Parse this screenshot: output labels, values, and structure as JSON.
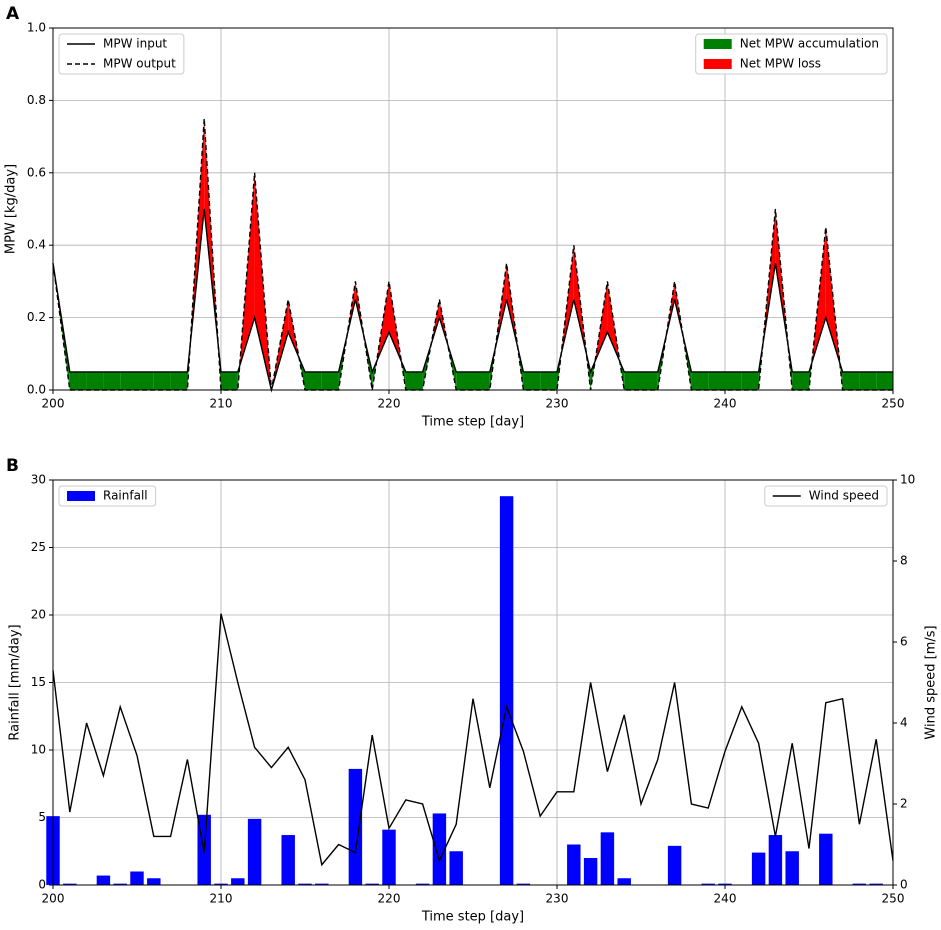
{
  "chart_data": [
    {
      "type": "line",
      "panel": "A",
      "xlabel": "Time step [day]",
      "ylabel": "MPW [kg/day]",
      "x": [
        200,
        201,
        202,
        203,
        204,
        205,
        206,
        207,
        208,
        209,
        210,
        211,
        212,
        213,
        214,
        215,
        216,
        217,
        218,
        219,
        220,
        221,
        222,
        223,
        224,
        225,
        226,
        227,
        228,
        229,
        230,
        231,
        232,
        233,
        234,
        235,
        236,
        237,
        238,
        239,
        240,
        241,
        242,
        243,
        244,
        245,
        246,
        247,
        248,
        249,
        250
      ],
      "series": [
        {
          "name": "MPW input",
          "color": "#000000",
          "dash": false,
          "legend": "upper left",
          "values": [
            0.35,
            0.05,
            0.05,
            0.05,
            0.05,
            0.05,
            0.05,
            0.05,
            0.05,
            0.5,
            0.05,
            0.05,
            0.2,
            0,
            0.16,
            0.05,
            0.05,
            0.05,
            0.25,
            0.05,
            0.16,
            0.05,
            0.05,
            0.2,
            0.05,
            0.05,
            0.05,
            0.25,
            0.05,
            0.05,
            0.05,
            0.25,
            0.05,
            0.16,
            0.05,
            0.05,
            0.05,
            0.25,
            0.05,
            0.05,
            0.05,
            0.05,
            0.05,
            0.35,
            0.05,
            0.05,
            0.2,
            0.05,
            0.05,
            0.05,
            0.05
          ]
        },
        {
          "name": "MPW output",
          "color": "#000000",
          "dash": true,
          "legend": "upper left",
          "values": [
            0.35,
            0,
            0,
            0,
            0,
            0,
            0,
            0,
            0,
            0.75,
            0,
            0,
            0.6,
            0,
            0.25,
            0,
            0,
            0,
            0.3,
            0,
            0.3,
            0,
            0,
            0.25,
            0,
            0,
            0,
            0.35,
            0,
            0,
            0,
            0.4,
            0,
            0.3,
            0,
            0,
            0,
            0.3,
            0,
            0,
            0,
            0,
            0,
            0.5,
            0,
            0,
            0.45,
            0,
            0,
            0,
            0
          ]
        }
      ],
      "fills": [
        {
          "name": "Net MPW accumulation",
          "color": "#008000",
          "legend": "upper right"
        },
        {
          "name": "Net MPW loss",
          "color": "#ff0000",
          "legend": "upper right"
        }
      ],
      "xlim": [
        200,
        250
      ],
      "xticks": [
        200,
        210,
        220,
        230,
        240,
        250
      ],
      "ylim": [
        0,
        1
      ],
      "yticks": [
        {
          "value": 0,
          "label": "0.0"
        },
        0.2,
        0.4,
        0.6,
        0.8,
        {
          "value": 1,
          "label": "1.0"
        }
      ],
      "grid": true
    },
    {
      "type": "bar",
      "panel": "B",
      "xlabel": "Time step [day]",
      "ylabel": "Rainfall [mm/day]",
      "y2label": "Wind speed [m/s]",
      "x": [
        200,
        201,
        202,
        203,
        204,
        205,
        206,
        207,
        208,
        209,
        210,
        211,
        212,
        213,
        214,
        215,
        216,
        217,
        218,
        219,
        220,
        221,
        222,
        223,
        224,
        225,
        226,
        227,
        228,
        229,
        230,
        231,
        232,
        233,
        234,
        235,
        236,
        237,
        238,
        239,
        240,
        241,
        242,
        243,
        244,
        245,
        246,
        247,
        248,
        249,
        250
      ],
      "series": [
        {
          "name": "Rainfall",
          "type": "bar",
          "color": "#0000ff",
          "legend": "upper left",
          "values": [
            5.1,
            0.1,
            0,
            0.7,
            0.1,
            1.0,
            0.5,
            0,
            0,
            5.2,
            0.1,
            0.5,
            4.9,
            0,
            3.7,
            0.1,
            0.1,
            0,
            8.6,
            0.1,
            4.1,
            0,
            0.1,
            5.3,
            2.5,
            0,
            0,
            28.8,
            0.1,
            0,
            0,
            3.0,
            2.0,
            3.9,
            0.5,
            0,
            0,
            2.9,
            0,
            0.1,
            0.1,
            0,
            2.4,
            3.7,
            2.5,
            0,
            3.8,
            0,
            0.1,
            0.1,
            0
          ]
        },
        {
          "name": "Wind speed",
          "type": "line",
          "axis": "y2",
          "color": "#000000",
          "legend": "upper right",
          "values": [
            5.3,
            1.8,
            4.0,
            2.7,
            4.4,
            3.2,
            1.2,
            1.2,
            3.1,
            0.8,
            6.7,
            5.0,
            3.4,
            2.9,
            3.4,
            2.6,
            0.5,
            1.0,
            0.8,
            3.7,
            1.4,
            2.1,
            2.0,
            0.6,
            1.5,
            4.6,
            2.4,
            4.4,
            3.3,
            1.7,
            2.3,
            2.3,
            5.0,
            2.8,
            4.2,
            2.0,
            3.1,
            5.0,
            2.0,
            1.9,
            3.3,
            4.4,
            3.5,
            1.2,
            3.5,
            0.9,
            4.5,
            4.6,
            1.5,
            3.6,
            0.6
          ]
        }
      ],
      "xlim": [
        200,
        250
      ],
      "xticks": [
        200,
        210,
        220,
        230,
        240,
        250
      ],
      "ylim": [
        0,
        30
      ],
      "yticks": [
        0,
        5,
        10,
        15,
        20,
        25,
        30
      ],
      "y2lim": [
        0,
        10
      ],
      "y2ticks": [
        0,
        2,
        4,
        6,
        8,
        10
      ],
      "grid": true
    }
  ]
}
